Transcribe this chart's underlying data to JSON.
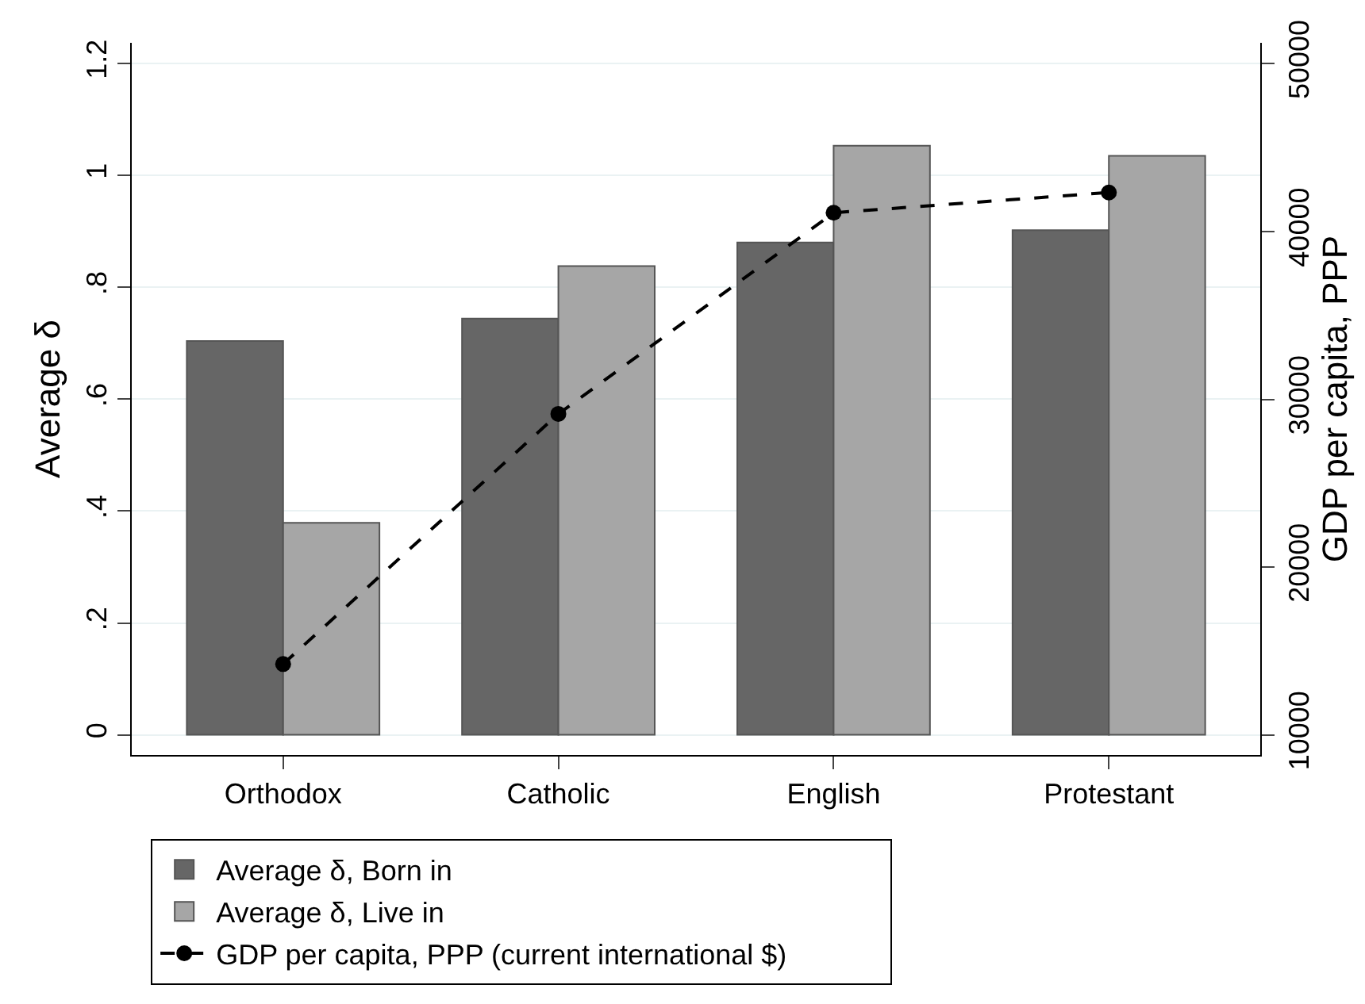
{
  "chart_data": {
    "type": "bar",
    "categories": [
      "Orthodox",
      "Catholic",
      "English",
      "Protestant"
    ],
    "series": [
      {
        "name": "Average δ, Born in",
        "color": "#666666",
        "values": [
          0.704,
          0.744,
          0.88,
          0.902
        ]
      },
      {
        "name": "Average δ, Live in",
        "color": "#a6a6a6",
        "values": [
          0.379,
          0.838,
          1.053,
          1.035
        ]
      },
      {
        "name": "GDP per capita, PPP (current international $)",
        "type": "line",
        "axis": "y2",
        "color": "#000000",
        "marker": "circle",
        "line_style": "dashed",
        "values": [
          14220,
          29130,
          41120,
          42330
        ]
      }
    ],
    "ylabel": "Average δ",
    "y2label": "GDP per capita, PPP",
    "ylim": [
      -0.036,
      1.237
    ],
    "yticks": [
      0,
      {
        "value": 0.2,
        "label": ".2"
      },
      {
        "value": 0.4,
        "label": ".4"
      },
      {
        "value": 0.6,
        "label": ".6"
      },
      {
        "value": 0.8,
        "label": ".8"
      },
      1,
      1.2
    ],
    "y2lim": [
      8800,
      51250
    ],
    "y2ticks": [
      10000,
      20000,
      30000,
      40000,
      50000
    ],
    "grid": "y",
    "legend": "bottom"
  }
}
